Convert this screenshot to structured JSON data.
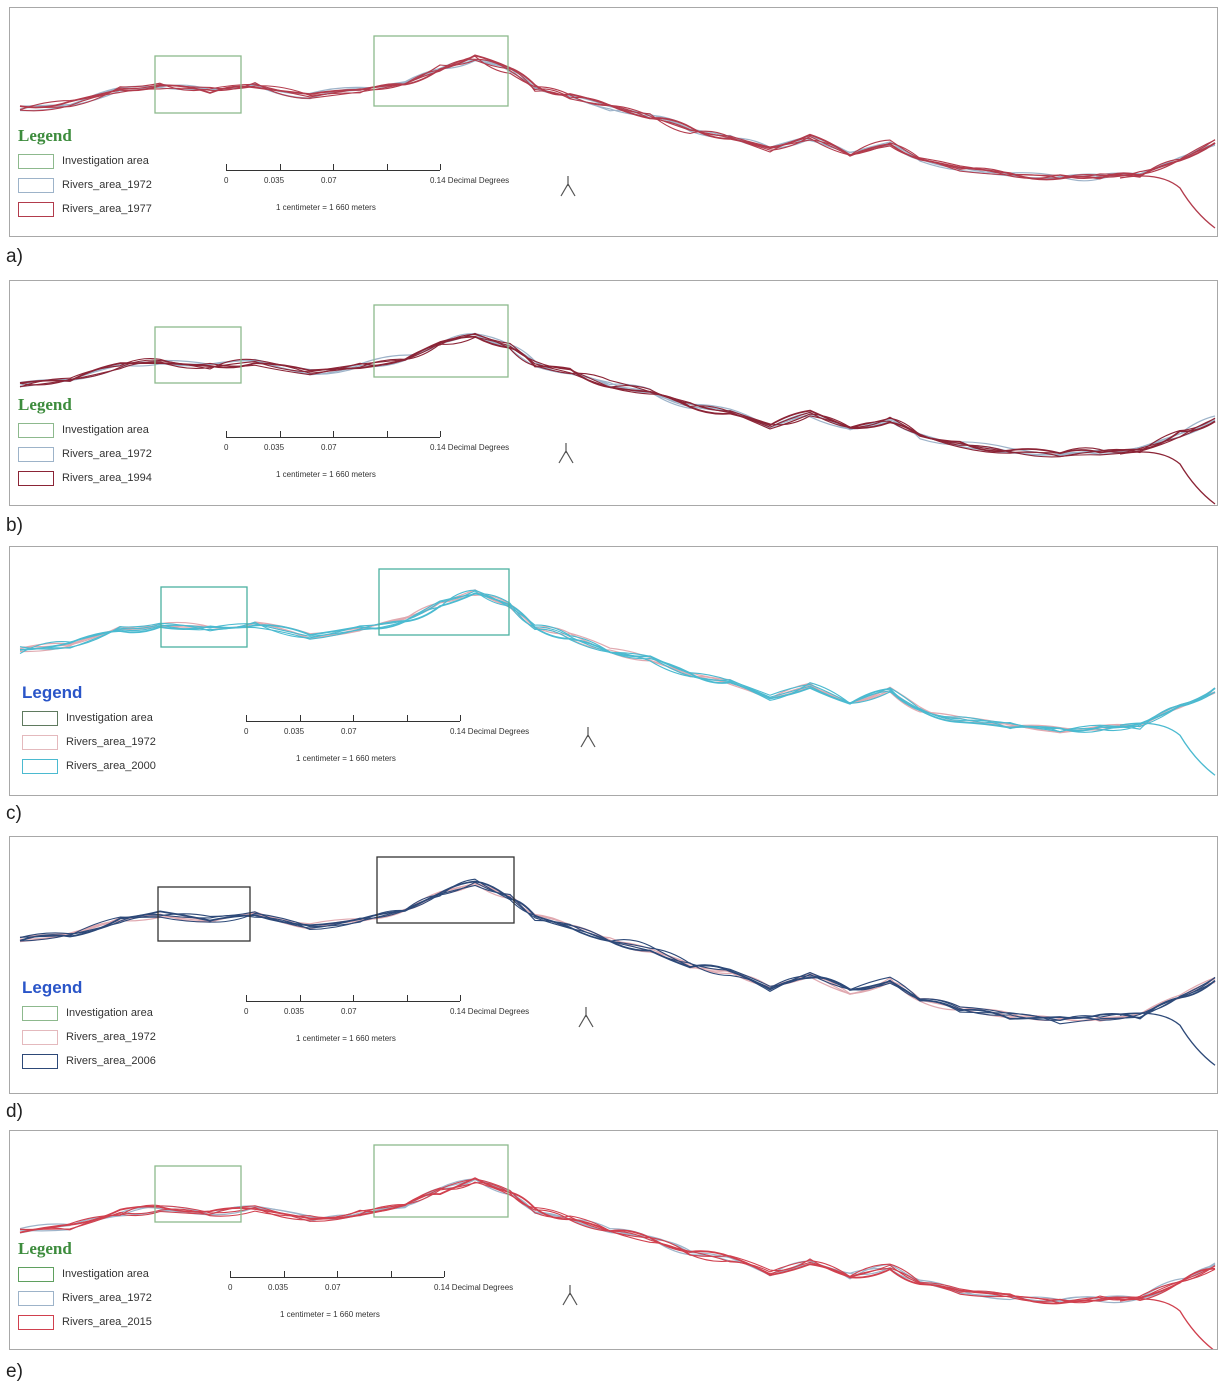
{
  "colors": {
    "investigation": "#8db98d",
    "ref_1972": "#9db3c9",
    "red": "#b23b4c",
    "darkred": "#8b2436",
    "cyan": "#4bbad0",
    "navy": "#2d4978",
    "legend_green": "#3d8c3d",
    "legend_blue": "#2a55c8"
  },
  "panels": [
    {
      "label": "a)",
      "legend_title": "Legend",
      "title_style": "green",
      "items": [
        "Investigation area",
        "Rivers_area_1972",
        "Rivers_area_1977"
      ],
      "swatches": [
        "#8db98d",
        "#9db3c9",
        "#b23b4c"
      ],
      "river_color": "#b23b4c",
      "box_color": "#8db98d",
      "scale": {
        "ticks": [
          "0",
          "0.035",
          "0.07"
        ],
        "unit": "0.14 Decimal Degrees",
        "ratio": "1 centimeter = 1 660 meters"
      }
    },
    {
      "label": "b)",
      "legend_title": "Legend",
      "title_style": "green",
      "items": [
        "Investigation area",
        "Rivers_area_1972",
        "Rivers_area_1994"
      ],
      "swatches": [
        "#8db98d",
        "#9db3c9",
        "#8b2436"
      ],
      "river_color": "#8b2436",
      "box_color": "#8db98d",
      "scale": {
        "ticks": [
          "0",
          "0.035",
          "0.07"
        ],
        "unit": "0.14 Decimal Degrees",
        "ratio": "1 centimeter = 1 660 meters"
      }
    },
    {
      "label": "c)",
      "legend_title": "Legend",
      "title_style": "blue",
      "items": [
        "Investigation area",
        "Rivers_area_1972",
        "Rivers_area_2000"
      ],
      "swatches": [
        "#5f7a5f",
        "#e4b9bd",
        "#4bbad0"
      ],
      "river_color": "#4bbad0",
      "box_color": "#4bb0a0",
      "scale": {
        "ticks": [
          "0",
          "0.035",
          "0.07"
        ],
        "unit": "0.14 Decimal Degrees",
        "ratio": "1 centimeter = 1 660 meters"
      }
    },
    {
      "label": "d)",
      "legend_title": "Legend",
      "title_style": "blue",
      "items": [
        "Investigation area",
        "Rivers_area_1972",
        "Rivers_area_2006"
      ],
      "swatches": [
        "#8db98d",
        "#e4b9bd",
        "#2d4978"
      ],
      "river_color": "#2d4978",
      "box_color": "#333333",
      "scale": {
        "ticks": [
          "0",
          "0.035",
          "0.07"
        ],
        "unit": "0.14 Decimal Degrees",
        "ratio": "1 centimeter = 1 660 meters"
      }
    },
    {
      "label": "e)",
      "legend_title": "Legend",
      "title_style": "green",
      "items": [
        "Investigation area",
        "Rivers_area_1972",
        "Rivers_area_2015"
      ],
      "swatches": [
        "#5fa05f",
        "#9db3c9",
        "#d0404e"
      ],
      "river_color": "#d0404e",
      "box_color": "#8db98d",
      "scale": {
        "ticks": [
          "0",
          "0.035",
          "0.07"
        ],
        "unit": "0.14 Decimal Degrees",
        "ratio": "1 centimeter = 1 660 meters"
      }
    }
  ]
}
